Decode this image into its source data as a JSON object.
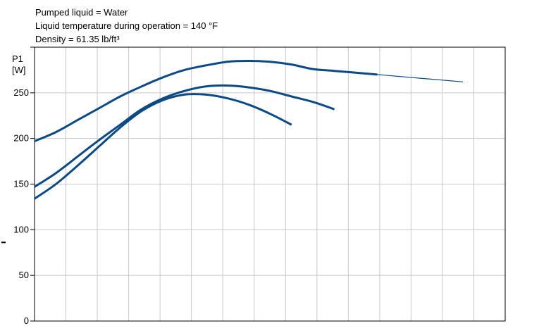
{
  "header": {
    "line1": "Pumped liquid = Water",
    "line2": "Liquid temperature during operation = 140 °F",
    "line3": "Density = 61.35 lb/ft³"
  },
  "chart_data": {
    "type": "line",
    "title": "",
    "ylabel_line1": "P1",
    "ylabel_line2": "[W]",
    "ylim": [
      0,
      300
    ],
    "y_ticks": [
      0,
      50,
      100,
      150,
      200,
      250
    ],
    "y_tick_labels": [
      "0",
      "50",
      "100",
      "150",
      "200",
      "250"
    ],
    "grid": true,
    "x_tick_labels": [],
    "colors": {
      "curve": "#0b4a86",
      "grid": "#c8c8c8",
      "axis": "#000000"
    },
    "series": [
      {
        "x": [
          0,
          5,
          10,
          15,
          20,
          25,
          30,
          35,
          40,
          45,
          50,
          55,
          60,
          65,
          70,
          75,
          80,
          85,
          90,
          95,
          100
        ],
        "values": [
          197,
          207,
          220,
          233,
          246,
          257,
          267,
          275,
          280,
          284,
          285,
          284,
          281,
          276,
          274,
          272,
          270,
          268,
          266,
          264,
          262
        ],
        "thick_until_x": 80
      },
      {
        "x": [
          0,
          5,
          10,
          15,
          20,
          25,
          30,
          35,
          40,
          45,
          50,
          55,
          60,
          65,
          70,
          75,
          80,
          85,
          90,
          95
        ],
        "values": [
          147,
          162,
          180,
          198,
          215,
          232,
          244,
          252,
          257,
          258,
          256,
          252,
          246,
          240,
          232,
          0,
          0,
          0,
          0,
          0
        ],
        "thick_until_x": 72
      },
      {
        "x": [
          0,
          5,
          10,
          15,
          20,
          25,
          30,
          35,
          40,
          45,
          50,
          55,
          60,
          65,
          70,
          75,
          80,
          85,
          90
        ],
        "values": [
          134,
          150,
          170,
          191,
          212,
          230,
          242,
          248,
          248,
          244,
          237,
          227,
          215,
          0,
          0,
          0,
          0,
          0,
          0
        ],
        "thick_until_x": 63
      }
    ]
  }
}
